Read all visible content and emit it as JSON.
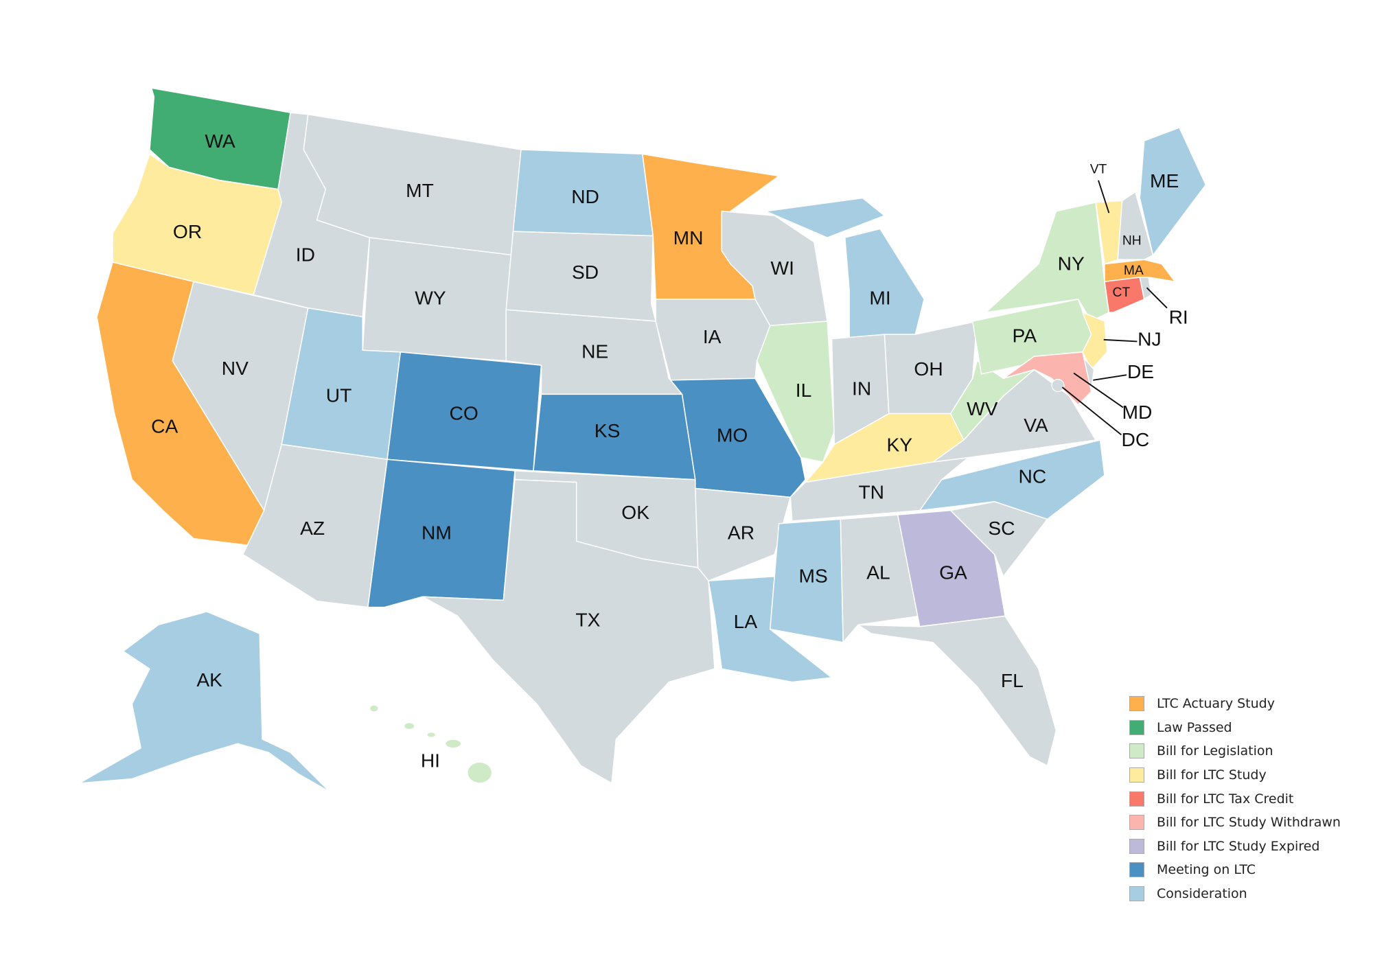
{
  "colors": {
    "actuary": "#fdb04c",
    "law": "#41ad73",
    "legislation": "#cfeac7",
    "study": "#feeb9e",
    "tax": "#f9786a",
    "withdrawn": "#fbb4ae",
    "expired": "#bdb9da",
    "meeting": "#4a90c2",
    "consideration": "#a6cde2",
    "none": "#d2dadd"
  },
  "legend": [
    {
      "key": "actuary",
      "label": "LTC Actuary Study"
    },
    {
      "key": "law",
      "label": "Law Passed"
    },
    {
      "key": "legislation",
      "label": "Bill for Legislation"
    },
    {
      "key": "study",
      "label": "Bill for LTC Study"
    },
    {
      "key": "tax",
      "label": "Bill for LTC Tax Credit"
    },
    {
      "key": "withdrawn",
      "label": "Bill for LTC Study Withdrawn"
    },
    {
      "key": "expired",
      "label": "Bill for LTC Study Expired"
    },
    {
      "key": "meeting",
      "label": "Meeting on LTC"
    },
    {
      "key": "consideration",
      "label": "Consideration"
    }
  ],
  "states": [
    {
      "code": "WA",
      "status": "law"
    },
    {
      "code": "OR",
      "status": "study"
    },
    {
      "code": "CA",
      "status": "actuary"
    },
    {
      "code": "NV",
      "status": "none"
    },
    {
      "code": "ID",
      "status": "none"
    },
    {
      "code": "MT",
      "status": "none"
    },
    {
      "code": "WY",
      "status": "none"
    },
    {
      "code": "UT",
      "status": "consideration"
    },
    {
      "code": "AZ",
      "status": "none"
    },
    {
      "code": "CO",
      "status": "meeting"
    },
    {
      "code": "NM",
      "status": "meeting"
    },
    {
      "code": "ND",
      "status": "consideration"
    },
    {
      "code": "SD",
      "status": "none"
    },
    {
      "code": "NE",
      "status": "none"
    },
    {
      "code": "KS",
      "status": "meeting"
    },
    {
      "code": "OK",
      "status": "none"
    },
    {
      "code": "TX",
      "status": "none"
    },
    {
      "code": "MN",
      "status": "actuary"
    },
    {
      "code": "IA",
      "status": "none"
    },
    {
      "code": "MO",
      "status": "meeting"
    },
    {
      "code": "AR",
      "status": "none"
    },
    {
      "code": "LA",
      "status": "consideration"
    },
    {
      "code": "WI",
      "status": "none"
    },
    {
      "code": "IL",
      "status": "legislation"
    },
    {
      "code": "MI",
      "status": "consideration"
    },
    {
      "code": "IN",
      "status": "none"
    },
    {
      "code": "OH",
      "status": "none"
    },
    {
      "code": "KY",
      "status": "study"
    },
    {
      "code": "TN",
      "status": "none"
    },
    {
      "code": "MS",
      "status": "consideration"
    },
    {
      "code": "AL",
      "status": "none"
    },
    {
      "code": "GA",
      "status": "expired"
    },
    {
      "code": "FL",
      "status": "none"
    },
    {
      "code": "SC",
      "status": "none"
    },
    {
      "code": "NC",
      "status": "consideration"
    },
    {
      "code": "VA",
      "status": "none"
    },
    {
      "code": "WV",
      "status": "legislation"
    },
    {
      "code": "PA",
      "status": "legislation"
    },
    {
      "code": "NY",
      "status": "legislation"
    },
    {
      "code": "NJ",
      "status": "study"
    },
    {
      "code": "DE",
      "status": "none"
    },
    {
      "code": "MD",
      "status": "withdrawn"
    },
    {
      "code": "CT",
      "status": "tax"
    },
    {
      "code": "RI",
      "status": "none"
    },
    {
      "code": "MA",
      "status": "actuary"
    },
    {
      "code": "VT",
      "status": "study"
    },
    {
      "code": "NH",
      "status": "none"
    },
    {
      "code": "ME",
      "status": "consideration"
    },
    {
      "code": "AK",
      "status": "consideration"
    },
    {
      "code": "HI",
      "status": "legislation"
    },
    {
      "code": "DC",
      "status": "none"
    }
  ]
}
